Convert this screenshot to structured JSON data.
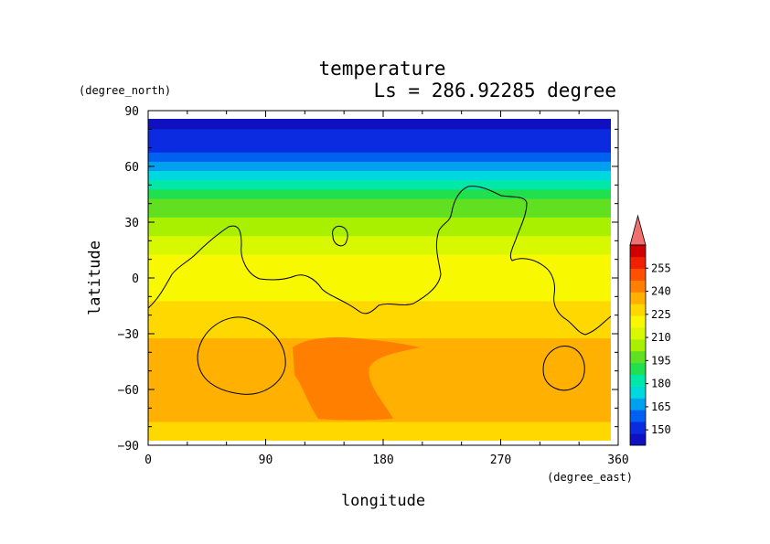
{
  "chart_data": {
    "type": "heatmap",
    "title": "temperature",
    "subtitle": "Ls = 286.92285 degree",
    "xlabel": "longitude",
    "ylabel": "latitude",
    "x_units": "(degree_east)",
    "y_units": "(degree_north)",
    "xlim": [
      0,
      360
    ],
    "ylim": [
      -90,
      90
    ],
    "x_ticks": [
      "0",
      "90",
      "180",
      "270",
      "360"
    ],
    "y_ticks": [
      "90",
      "60",
      "30",
      "0",
      "−30",
      "−60",
      "−90"
    ],
    "grid": false,
    "colorbar": {
      "placement": "right",
      "min": 140,
      "max": 270,
      "step": 7.5,
      "labels": [
        "150",
        "165",
        "180",
        "195",
        "210",
        "225",
        "240",
        "255"
      ],
      "colors": [
        "#1010c0",
        "#0a2be0",
        "#0060f0",
        "#00a0f0",
        "#00d8e0",
        "#00e8a8",
        "#20e050",
        "#60e020",
        "#a8f000",
        "#d8f800",
        "#f8f800",
        "#ffd800",
        "#ffb000",
        "#ff8000",
        "#ff5000",
        "#f02000",
        "#d00000"
      ],
      "overflow_color": "#f07070"
    },
    "zonal_profile": {
      "latitudes": [
        85,
        75,
        70,
        65,
        60,
        55,
        50,
        45,
        40,
        35,
        30,
        25,
        20,
        15,
        10,
        5,
        0,
        -5,
        -10,
        -15,
        -20,
        -25,
        -30,
        -35,
        -40,
        -45,
        -50,
        -55,
        -60,
        -65,
        -70,
        -75,
        -80,
        -85
      ],
      "temperature": [
        147,
        148,
        152,
        160,
        168,
        176,
        183,
        189,
        194,
        199,
        203,
        207,
        210,
        213,
        215,
        216,
        218,
        220,
        222,
        224,
        226,
        227,
        229,
        230,
        232,
        233,
        233,
        233,
        232,
        231,
        230,
        230,
        229,
        229
      ]
    },
    "contour_level": "topography"
  }
}
